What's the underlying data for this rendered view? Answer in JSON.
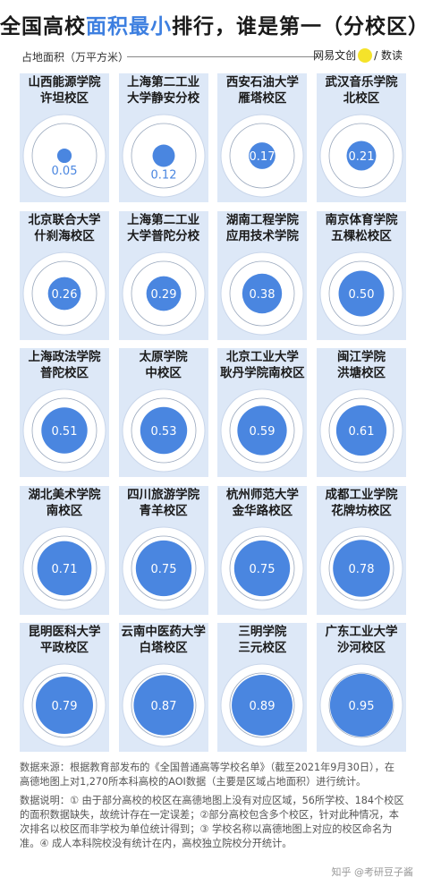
{
  "header": {
    "title_pre": "全国高校",
    "title_hl": "面积最小",
    "title_post": "排行，谁是第一（分校区）",
    "unit_label": "占地面积（万平方米）",
    "brand_a": "网易文创",
    "brand_b": "/ 数读"
  },
  "colors": {
    "accent": "#3d7fe0",
    "cell_bg": "#dde8f7",
    "area_fill": "#4a86e0",
    "ring_fill": "#ffffff"
  },
  "chart_data": {
    "type": "proportional-area",
    "title": "全国高校面积最小排行，谁是第一（分校区）",
    "unit": "占地面积（万平方米）",
    "categories": [
      [
        "山西能源学院",
        "许坦校区"
      ],
      [
        "上海第二工业",
        "大学静安分校"
      ],
      [
        "西安石油大学",
        "雁塔校区"
      ],
      [
        "武汉音乐学院",
        "北校区"
      ],
      [
        "北京联合大学",
        "什刹海校区"
      ],
      [
        "上海第二工业",
        "大学普陀分校"
      ],
      [
        "湖南工程学院",
        "应用技术学院"
      ],
      [
        "南京体育学院",
        "五棵松校区"
      ],
      [
        "上海政法学院",
        "普陀校区"
      ],
      [
        "太原学院",
        "中校区"
      ],
      [
        "北京工业大学",
        "耿丹学院南校区"
      ],
      [
        "闽江学院",
        "洪塘校区"
      ],
      [
        "湖北美术学院",
        "南校区"
      ],
      [
        "四川旅游学院",
        "青羊校区"
      ],
      [
        "杭州师范大学",
        "金华路校区"
      ],
      [
        "成都工业学院",
        "花牌坊校区"
      ],
      [
        "昆明医科大学",
        "平政校区"
      ],
      [
        "云南中医药大学",
        "白塔校区"
      ],
      [
        "三明学院",
        "三元校区"
      ],
      [
        "广东工业大学",
        "沙河校区"
      ]
    ],
    "values": [
      0.05,
      0.12,
      0.17,
      0.21,
      0.26,
      0.29,
      0.38,
      0.5,
      0.51,
      0.53,
      0.59,
      0.61,
      0.71,
      0.75,
      0.75,
      0.78,
      0.79,
      0.87,
      0.89,
      0.95
    ],
    "value_labels": [
      "0.05",
      "0.12",
      "0.17",
      "0.21",
      "0.26",
      "0.29",
      "0.38",
      "0.50",
      "0.51",
      "0.53",
      "0.59",
      "0.61",
      "0.71",
      "0.75",
      "0.75",
      "0.78",
      "0.79",
      "0.87",
      "0.89",
      "0.95"
    ],
    "reference_value": 1
  },
  "footer": {
    "source": "数据来源：根据教育部发布的《全国普通高等学校名单》（截至2021年9月30日），在高德地图上对1,270所本科高校的AOI数据（主要是区域占地面积）进行统计。",
    "note": "数据说明：① 由于部分高校的校区在高德地图上没有对应区域，56所学校、184个校区的面积数据缺失，故统计存在一定误差；②部分高校包含多个校区，针对此种情况，本次排名以校区而非学校为单位统计得到；③ 学校名称以高德地图上对应的校区命名为准。④ 成人本科院校没有统计在内，高校独立院校分开统计。",
    "watermark": "知乎 @考研豆子酱"
  }
}
